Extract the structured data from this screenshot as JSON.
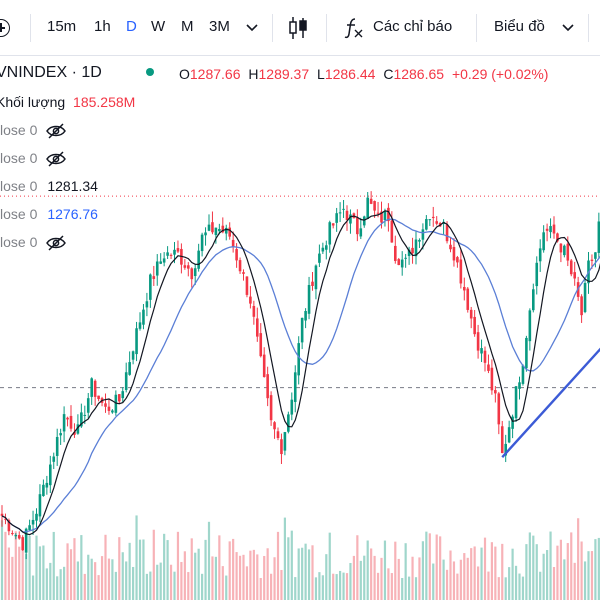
{
  "toolbar": {
    "intervals": [
      {
        "label": "15m",
        "active": false
      },
      {
        "label": "1h",
        "active": false
      },
      {
        "label": "D",
        "active": true
      },
      {
        "label": "W",
        "active": false
      },
      {
        "label": "M",
        "active": false
      },
      {
        "label": "3M",
        "active": false
      }
    ],
    "indicators_label": "Các chỉ báo",
    "chart_type_label": "Biểu đồ"
  },
  "header": {
    "symbol": "VNINDEX · 1D",
    "status_color": "#089981",
    "ohlc": {
      "o_label": "O",
      "o": "1287.66",
      "h_label": "H",
      "h": "1289.37",
      "l_label": "L",
      "l": "1286.44",
      "c_label": "C",
      "c": "1286.65",
      "change": "+0.29 (+0.02%)"
    },
    "volume_label": "Khối lượng",
    "volume_value": "185.258M"
  },
  "indicators": [
    {
      "label": "lose 0",
      "value": "",
      "hidden": true,
      "color": "#131722"
    },
    {
      "label": "lose 0",
      "value": "",
      "hidden": true,
      "color": "#131722"
    },
    {
      "label": "lose 0",
      "value": "1281.34",
      "hidden": false,
      "color": "#131722"
    },
    {
      "label": "lose 0",
      "value": "1276.76",
      "hidden": false,
      "color": "#2962ff"
    },
    {
      "label": "lose 0",
      "value": "",
      "hidden": true,
      "color": "#131722"
    }
  ],
  "colors": {
    "up": "#089981",
    "down": "#f23645",
    "ma_short": "#131722",
    "ma_long": "#5b7fd6",
    "trendline": "#3c5bd6",
    "up_volume": "#9fd6cb",
    "down_volume": "#f7b2b7"
  },
  "chart_data": {
    "type": "candlestick",
    "title": "VNINDEX · 1D",
    "ylim": [
      1090,
      1325
    ],
    "last_close": 1286.65,
    "ma_values": {
      "ma_short": 1281.34,
      "ma_long": 1276.76
    },
    "reference_level": 1182,
    "trendline": {
      "start_index": 145,
      "start_value": 1144,
      "end_index": 172,
      "end_value": 1204
    },
    "anchors": [
      [
        0,
        1112
      ],
      [
        6,
        1097
      ],
      [
        10,
        1115
      ],
      [
        14,
        1140
      ],
      [
        18,
        1167
      ],
      [
        22,
        1158
      ],
      [
        26,
        1183
      ],
      [
        30,
        1170
      ],
      [
        34,
        1175
      ],
      [
        38,
        1205
      ],
      [
        43,
        1240
      ],
      [
        47,
        1255
      ],
      [
        51,
        1255
      ],
      [
        55,
        1245
      ],
      [
        58,
        1264
      ],
      [
        62,
        1270
      ],
      [
        66,
        1265
      ],
      [
        69,
        1248
      ],
      [
        72,
        1230
      ],
      [
        75,
        1195
      ],
      [
        78,
        1162
      ],
      [
        81,
        1150
      ],
      [
        84,
        1178
      ],
      [
        87,
        1218
      ],
      [
        91,
        1250
      ],
      [
        95,
        1268
      ],
      [
        99,
        1280
      ],
      [
        103,
        1268
      ],
      [
        106,
        1284
      ],
      [
        109,
        1274
      ],
      [
        112,
        1276
      ],
      [
        114,
        1255
      ],
      [
        117,
        1250
      ],
      [
        120,
        1263
      ],
      [
        124,
        1278
      ],
      [
        128,
        1270
      ],
      [
        131,
        1256
      ],
      [
        134,
        1236
      ],
      [
        137,
        1212
      ],
      [
        140,
        1196
      ],
      [
        143,
        1175
      ],
      [
        145,
        1145
      ],
      [
        148,
        1170
      ],
      [
        151,
        1198
      ],
      [
        154,
        1240
      ],
      [
        157,
        1268
      ],
      [
        160,
        1266
      ],
      [
        163,
        1256
      ],
      [
        166,
        1238
      ],
      [
        168,
        1222
      ],
      [
        170,
        1248
      ],
      [
        172,
        1256
      ],
      [
        174,
        1286
      ]
    ],
    "legend": {
      "volume": "185.258M"
    }
  }
}
